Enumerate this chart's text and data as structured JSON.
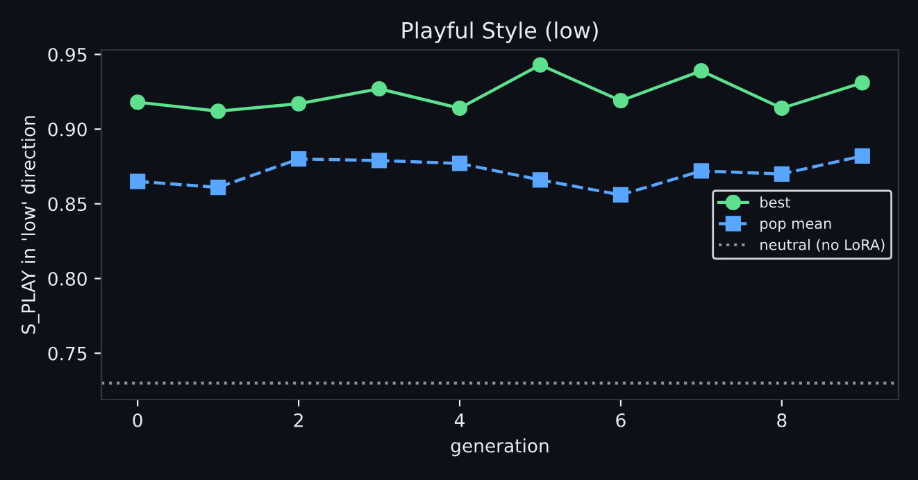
{
  "chart_data": {
    "type": "line",
    "title": "Playful Style (low)",
    "xlabel": "generation",
    "ylabel": "S_PLAY in 'low' direction",
    "x": [
      0,
      1,
      2,
      3,
      4,
      5,
      6,
      7,
      8,
      9
    ],
    "series": [
      {
        "name": "best",
        "color": "#5ee08e",
        "marker": "circle",
        "line_style": "solid",
        "values": [
          0.918,
          0.912,
          0.917,
          0.927,
          0.914,
          0.943,
          0.919,
          0.939,
          0.914,
          0.931
        ]
      },
      {
        "name": "pop mean",
        "color": "#58a6ff",
        "marker": "square",
        "line_style": "dashed",
        "values": [
          0.865,
          0.861,
          0.88,
          0.879,
          0.877,
          0.866,
          0.856,
          0.872,
          0.87,
          0.882
        ]
      }
    ],
    "ref_lines": [
      {
        "axis": "y",
        "value": 0.73,
        "label": "neutral (no LoRA)",
        "color": "#8b949e",
        "line_style": "dotted"
      }
    ],
    "xlim": [
      -0.45,
      9.45
    ],
    "ylim": [
      0.719,
      0.953
    ],
    "xticks": [
      0,
      2,
      4,
      6,
      8
    ],
    "yticks": [
      {
        "value": 0.75,
        "label": "0.75"
      },
      {
        "value": 0.8,
        "label": "0.80"
      },
      {
        "value": 0.85,
        "label": "0.85"
      },
      {
        "value": 0.9,
        "label": "0.90"
      },
      {
        "value": 0.95,
        "label": "0.95"
      }
    ],
    "grid": false,
    "legend": "center right"
  }
}
